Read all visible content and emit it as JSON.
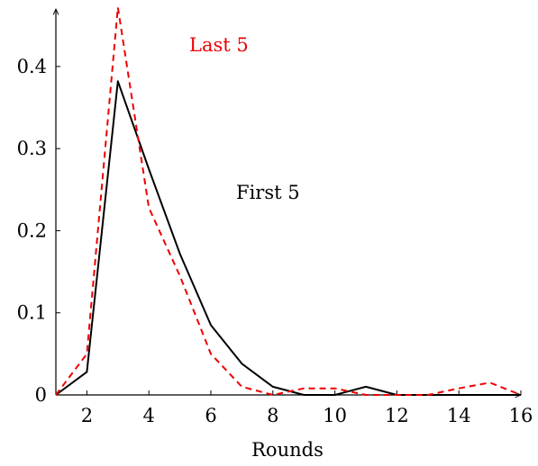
{
  "chart_data": {
    "type": "line",
    "title": "",
    "xlabel": "Rounds",
    "ylabel": "",
    "xlim": [
      1,
      16
    ],
    "ylim": [
      0,
      0.47
    ],
    "x_ticks": [
      2,
      4,
      6,
      8,
      10,
      12,
      14,
      16
    ],
    "x_tick_labels": [
      "2",
      "4",
      "6",
      "8",
      "10",
      "12",
      "14",
      "16"
    ],
    "y_ticks": [
      0,
      0.1,
      0.2,
      0.3,
      0.4
    ],
    "y_tick_labels": [
      "0",
      "0.1",
      "0.2",
      "0.3",
      "0.4"
    ],
    "grid": false,
    "series": [
      {
        "name": "First 5",
        "color": "#000000",
        "style": "solid",
        "x": [
          1,
          2,
          3,
          4,
          5,
          6,
          7,
          8,
          9,
          10,
          11,
          12,
          13,
          14,
          15,
          16
        ],
        "y": [
          0,
          0.028,
          0.382,
          0.275,
          0.172,
          0.085,
          0.038,
          0.01,
          0,
          0,
          0.01,
          0,
          0,
          0,
          0,
          0
        ]
      },
      {
        "name": "Last 5",
        "color": "#ee0000",
        "style": "dashed",
        "x": [
          1,
          2,
          3,
          4,
          5,
          6,
          7,
          8,
          9,
          10,
          11,
          12,
          13,
          14,
          15,
          16
        ],
        "y": [
          0,
          0.05,
          0.472,
          0.228,
          0.145,
          0.05,
          0.01,
          0,
          0.008,
          0.008,
          0,
          0,
          0,
          0.008,
          0.015,
          0
        ]
      }
    ]
  }
}
